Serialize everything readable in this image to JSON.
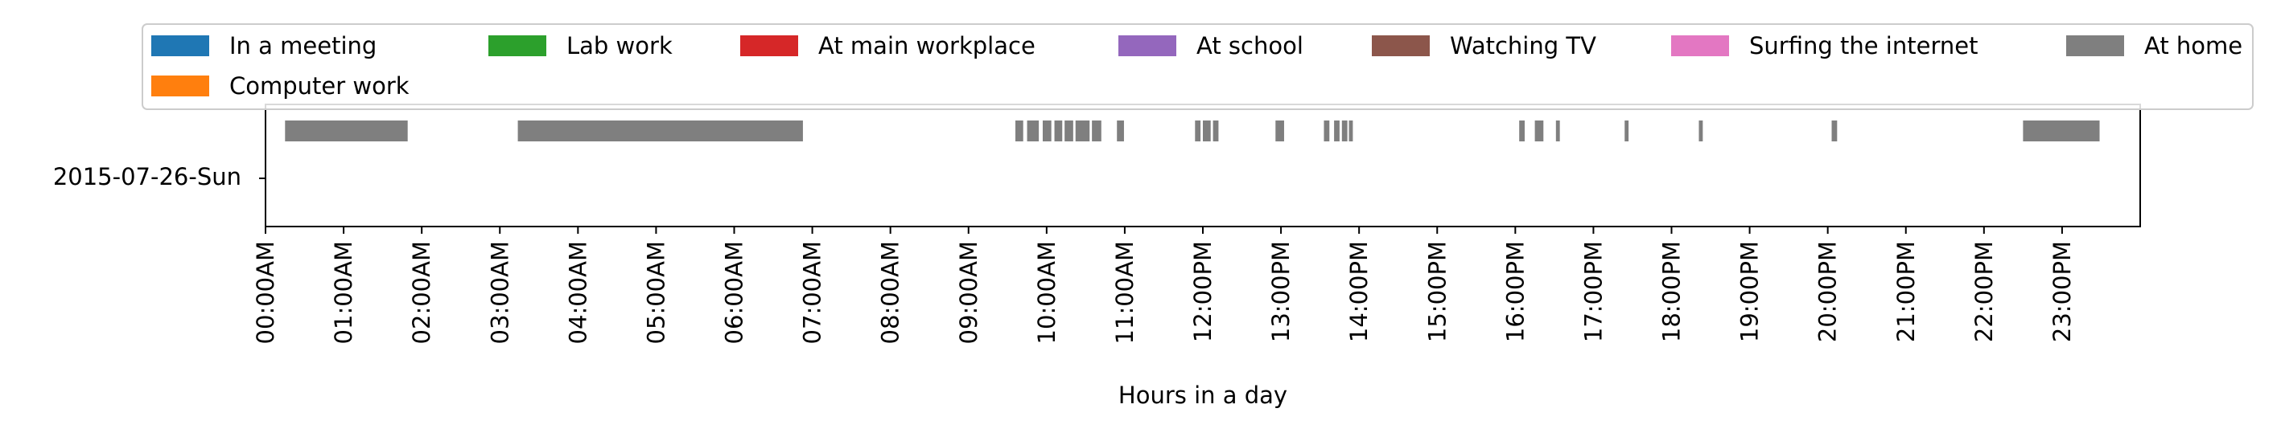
{
  "chart_data": {
    "type": "timeline",
    "xlabel": "Hours in a day",
    "row_label": "2015-07-26-Sun",
    "xlim": [
      0,
      24
    ],
    "grid": false,
    "legend": {
      "placement": "top",
      "entries": [
        {
          "name": "In a meeting",
          "color": "#1f77b4"
        },
        {
          "name": "Lab work",
          "color": "#2ca02c"
        },
        {
          "name": "At main workplace",
          "color": "#d62728"
        },
        {
          "name": "At school",
          "color": "#9467bd"
        },
        {
          "name": "Watching TV",
          "color": "#8c564b"
        },
        {
          "name": "Surfing the internet",
          "color": "#e377c2"
        },
        {
          "name": "At home",
          "color": "#7f7f7f"
        },
        {
          "name": "Computer work",
          "color": "#ff7f0e"
        }
      ]
    },
    "x_ticks": [
      {
        "value": 0,
        "label": "00:00AM"
      },
      {
        "value": 1,
        "label": "01:00AM"
      },
      {
        "value": 2,
        "label": "02:00AM"
      },
      {
        "value": 3,
        "label": "03:00AM"
      },
      {
        "value": 4,
        "label": "04:00AM"
      },
      {
        "value": 5,
        "label": "05:00AM"
      },
      {
        "value": 6,
        "label": "06:00AM"
      },
      {
        "value": 7,
        "label": "07:00AM"
      },
      {
        "value": 8,
        "label": "08:00AM"
      },
      {
        "value": 9,
        "label": "09:00AM"
      },
      {
        "value": 10,
        "label": "10:00AM"
      },
      {
        "value": 11,
        "label": "11:00AM"
      },
      {
        "value": 12,
        "label": "12:00PM"
      },
      {
        "value": 13,
        "label": "13:00PM"
      },
      {
        "value": 14,
        "label": "14:00PM"
      },
      {
        "value": 15,
        "label": "15:00PM"
      },
      {
        "value": 16,
        "label": "16:00PM"
      },
      {
        "value": 17,
        "label": "17:00PM"
      },
      {
        "value": 18,
        "label": "18:00PM"
      },
      {
        "value": 19,
        "label": "19:00PM"
      },
      {
        "value": 20,
        "label": "20:00PM"
      },
      {
        "value": 21,
        "label": "21:00PM"
      },
      {
        "value": 22,
        "label": "22:00PM"
      },
      {
        "value": 23,
        "label": "23:00PM"
      }
    ],
    "segments": [
      {
        "series": "At home",
        "start": 0.25,
        "end": 1.82
      },
      {
        "series": "At home",
        "start": 3.23,
        "end": 6.88
      },
      {
        "series": "At home",
        "start": 9.6,
        "end": 9.7
      },
      {
        "series": "At home",
        "start": 9.75,
        "end": 9.9
      },
      {
        "series": "At home",
        "start": 9.95,
        "end": 10.06
      },
      {
        "series": "At home",
        "start": 10.1,
        "end": 10.2
      },
      {
        "series": "At home",
        "start": 10.23,
        "end": 10.34
      },
      {
        "series": "At home",
        "start": 10.37,
        "end": 10.55
      },
      {
        "series": "At home",
        "start": 10.58,
        "end": 10.7
      },
      {
        "series": "At home",
        "start": 10.9,
        "end": 10.99
      },
      {
        "series": "At home",
        "start": 11.9,
        "end": 11.97
      },
      {
        "series": "At home",
        "start": 12.0,
        "end": 12.1
      },
      {
        "series": "At home",
        "start": 12.13,
        "end": 12.2
      },
      {
        "series": "At home",
        "start": 12.93,
        "end": 13.04
      },
      {
        "series": "At home",
        "start": 13.55,
        "end": 13.62
      },
      {
        "series": "At home",
        "start": 13.68,
        "end": 13.75
      },
      {
        "series": "At home",
        "start": 13.78,
        "end": 13.85
      },
      {
        "series": "At home",
        "start": 13.87,
        "end": 13.92
      },
      {
        "series": "At home",
        "start": 16.05,
        "end": 16.12
      },
      {
        "series": "At home",
        "start": 16.25,
        "end": 16.36
      },
      {
        "series": "At home",
        "start": 16.52,
        "end": 16.57
      },
      {
        "series": "At home",
        "start": 17.4,
        "end": 17.45
      },
      {
        "series": "At home",
        "start": 18.35,
        "end": 18.4
      },
      {
        "series": "At home",
        "start": 20.05,
        "end": 20.12
      },
      {
        "series": "At home",
        "start": 22.5,
        "end": 23.48
      }
    ]
  }
}
